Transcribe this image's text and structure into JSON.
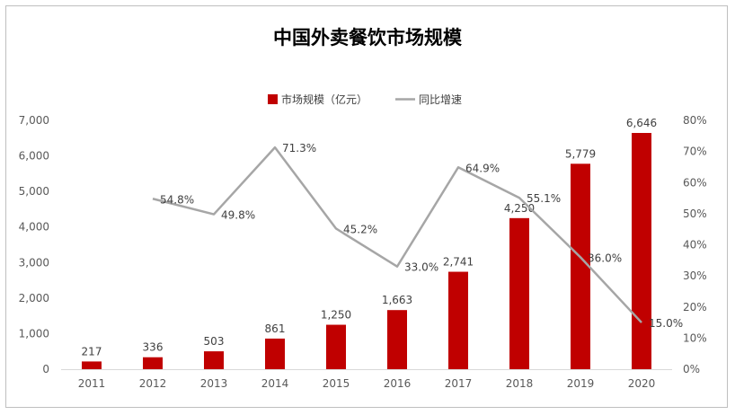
{
  "chart_data": {
    "type": "bar+line",
    "title": "中国外卖餐饮市场规模",
    "categories": [
      "2011",
      "2012",
      "2013",
      "2014",
      "2015",
      "2016",
      "2017",
      "2018",
      "2019",
      "2020"
    ],
    "series": [
      {
        "name": "市场规模（亿元）",
        "type": "bar",
        "axis": "left",
        "color": "#c00000",
        "values": [
          217,
          336,
          503,
          861,
          1250,
          1663,
          2741,
          4250,
          5779,
          6646
        ],
        "labels": [
          "217",
          "336",
          "503",
          "861",
          "1,250",
          "1,663",
          "2,741",
          "4,250",
          "5,779",
          "6,646"
        ]
      },
      {
        "name": "同比增速",
        "type": "line",
        "axis": "right",
        "color": "#a6a6a6",
        "values": [
          null,
          54.8,
          49.8,
          71.3,
          45.2,
          33.0,
          64.9,
          55.1,
          36.0,
          15.0
        ],
        "labels": [
          "",
          "54.8%",
          "49.8%",
          "71.3%",
          "45.2%",
          "33.0%",
          "64.9%",
          "55.1%",
          "36.0%",
          "15.0%"
        ]
      }
    ],
    "y_left": {
      "min": 0,
      "max": 7000,
      "ticks": [
        "0",
        "1,000",
        "2,000",
        "3,000",
        "4,000",
        "5,000",
        "6,000",
        "7,000"
      ]
    },
    "y_right": {
      "min": 0,
      "max": 80,
      "ticks": [
        "0%",
        "10%",
        "20%",
        "30%",
        "40%",
        "50%",
        "60%",
        "70%",
        "80%"
      ]
    },
    "grid": false,
    "legend": "top-center"
  }
}
